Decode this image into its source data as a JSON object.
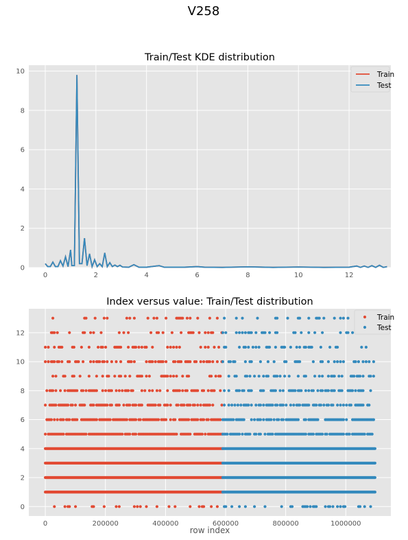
{
  "figure": {
    "suptitle": "V258"
  },
  "colors": {
    "train": "#E24A33",
    "test": "#348ABD",
    "axes_bg": "#E5E5E5",
    "grid": "#FFFFFF"
  },
  "chart_data": [
    {
      "type": "line",
      "title": "Train/Test KDE distribution",
      "xlabel": "",
      "ylabel": "",
      "xlim": [
        -0.65,
        13.65
      ],
      "ylim": [
        0,
        10.3
      ],
      "xticks": [
        0,
        2,
        4,
        6,
        8,
        10,
        12
      ],
      "yticks": [
        0,
        2,
        4,
        6,
        8,
        10
      ],
      "grid": true,
      "legend": "top-right",
      "series": [
        {
          "name": "Train",
          "color_key": "train",
          "points": [
            [
              0,
              0.2
            ],
            [
              0.1,
              0.05
            ],
            [
              0.2,
              0.05
            ],
            [
              0.3,
              0.28
            ],
            [
              0.4,
              0.05
            ],
            [
              0.5,
              0.05
            ],
            [
              0.6,
              0.35
            ],
            [
              0.7,
              0.08
            ],
            [
              0.8,
              0.55
            ],
            [
              0.9,
              0.05
            ],
            [
              1.0,
              0.9
            ],
            [
              1.05,
              0.1
            ],
            [
              1.15,
              0.1
            ],
            [
              1.25,
              9.8
            ],
            [
              1.35,
              0.2
            ],
            [
              1.45,
              0.2
            ],
            [
              1.55,
              1.5
            ],
            [
              1.65,
              0.1
            ],
            [
              1.75,
              0.7
            ],
            [
              1.85,
              0.05
            ],
            [
              1.95,
              0.4
            ],
            [
              2.05,
              0.05
            ],
            [
              2.15,
              0.2
            ],
            [
              2.25,
              0.05
            ],
            [
              2.35,
              0.75
            ],
            [
              2.45,
              0.05
            ],
            [
              2.55,
              0.25
            ],
            [
              2.65,
              0.05
            ],
            [
              2.75,
              0.13
            ],
            [
              2.85,
              0.05
            ],
            [
              2.95,
              0.12
            ],
            [
              3.05,
              0.03
            ],
            [
              3.3,
              0.02
            ],
            [
              3.5,
              0.15
            ],
            [
              3.7,
              0.02
            ],
            [
              4.0,
              0.02
            ],
            [
              4.5,
              0.1
            ],
            [
              4.7,
              0.02
            ],
            [
              5.5,
              0.02
            ],
            [
              6.0,
              0.05
            ],
            [
              6.3,
              0.02
            ],
            [
              7.0,
              0.01
            ],
            [
              8.0,
              0.04
            ],
            [
              9.0,
              0.01
            ],
            [
              10.0,
              0.03
            ],
            [
              11.0,
              0.01
            ],
            [
              12.0,
              0.02
            ],
            [
              12.3,
              0.08
            ],
            [
              12.45,
              0.01
            ],
            [
              12.6,
              0.08
            ],
            [
              12.75,
              0.01
            ],
            [
              12.9,
              0.1
            ],
            [
              13.05,
              0.01
            ],
            [
              13.2,
              0.12
            ],
            [
              13.35,
              0.01
            ],
            [
              13.5,
              0.05
            ]
          ]
        },
        {
          "name": "Test",
          "color_key": "test",
          "points": [
            [
              0,
              0.2
            ],
            [
              0.1,
              0.05
            ],
            [
              0.2,
              0.05
            ],
            [
              0.3,
              0.28
            ],
            [
              0.4,
              0.05
            ],
            [
              0.5,
              0.05
            ],
            [
              0.6,
              0.35
            ],
            [
              0.7,
              0.08
            ],
            [
              0.8,
              0.55
            ],
            [
              0.9,
              0.05
            ],
            [
              1.0,
              0.9
            ],
            [
              1.05,
              0.1
            ],
            [
              1.15,
              0.1
            ],
            [
              1.25,
              9.8
            ],
            [
              1.35,
              0.2
            ],
            [
              1.45,
              0.2
            ],
            [
              1.55,
              1.5
            ],
            [
              1.65,
              0.1
            ],
            [
              1.75,
              0.7
            ],
            [
              1.85,
              0.05
            ],
            [
              1.95,
              0.4
            ],
            [
              2.05,
              0.05
            ],
            [
              2.15,
              0.2
            ],
            [
              2.25,
              0.05
            ],
            [
              2.35,
              0.75
            ],
            [
              2.45,
              0.05
            ],
            [
              2.55,
              0.25
            ],
            [
              2.65,
              0.05
            ],
            [
              2.75,
              0.13
            ],
            [
              2.85,
              0.05
            ],
            [
              2.95,
              0.12
            ],
            [
              3.05,
              0.03
            ],
            [
              3.3,
              0.02
            ],
            [
              3.5,
              0.15
            ],
            [
              3.7,
              0.02
            ],
            [
              4.0,
              0.02
            ],
            [
              4.5,
              0.1
            ],
            [
              4.7,
              0.02
            ],
            [
              5.5,
              0.02
            ],
            [
              6.0,
              0.05
            ],
            [
              6.3,
              0.02
            ],
            [
              7.0,
              0.01
            ],
            [
              8.0,
              0.04
            ],
            [
              9.0,
              0.01
            ],
            [
              10.0,
              0.03
            ],
            [
              11.0,
              0.01
            ],
            [
              12.0,
              0.02
            ],
            [
              12.3,
              0.08
            ],
            [
              12.45,
              0.01
            ],
            [
              12.6,
              0.08
            ],
            [
              12.75,
              0.01
            ],
            [
              12.9,
              0.1
            ],
            [
              13.05,
              0.01
            ],
            [
              13.2,
              0.12
            ],
            [
              13.35,
              0.01
            ],
            [
              13.5,
              0.05
            ]
          ]
        }
      ]
    },
    {
      "type": "scatter",
      "title": "Index versus value: Train/Test distribution",
      "xlabel": "row index",
      "ylabel": "",
      "xlim": [
        -55000,
        1150000
      ],
      "ylim": [
        -0.65,
        13.65
      ],
      "xticks": [
        0,
        200000,
        400000,
        600000,
        800000,
        1000000
      ],
      "yticks": [
        0,
        2,
        4,
        6,
        8,
        10,
        12
      ],
      "grid": true,
      "legend": "top-right",
      "series": [
        {
          "name": "Train",
          "color_key": "train",
          "x_range": [
            0,
            590540
          ],
          "y_levels": [
            0,
            1,
            2,
            3,
            4,
            5,
            6,
            7,
            8,
            9,
            10,
            11,
            12,
            13
          ],
          "level_density": [
            0.25,
            1.0,
            1.0,
            1.0,
            1.0,
            0.9,
            0.8,
            0.6,
            0.55,
            0.4,
            0.45,
            0.3,
            0.25,
            0.2
          ]
        },
        {
          "name": "Test",
          "color_key": "test",
          "x_range": [
            590540,
            1097231
          ],
          "y_levels": [
            0,
            1,
            2,
            3,
            4,
            5,
            6,
            7,
            8,
            9,
            10,
            11,
            12,
            13
          ],
          "level_density": [
            0.2,
            1.0,
            1.0,
            1.0,
            1.0,
            0.85,
            0.75,
            0.5,
            0.5,
            0.35,
            0.4,
            0.3,
            0.25,
            0.2
          ]
        }
      ]
    }
  ]
}
